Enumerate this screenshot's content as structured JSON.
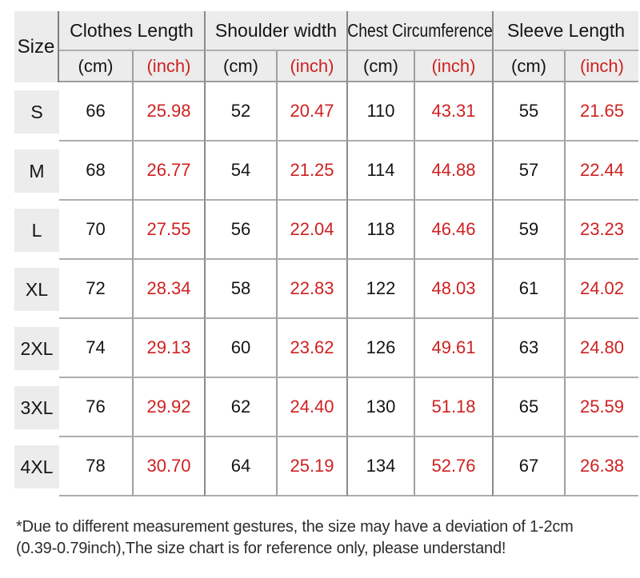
{
  "table": {
    "size_label": "Size",
    "unit_cm": "(cm)",
    "unit_inch": "(inch)",
    "groups": [
      {
        "label": "Clothes Length"
      },
      {
        "label": "Shoulder width"
      },
      {
        "label": "Chest Circumference"
      },
      {
        "label": "Sleeve Length"
      }
    ],
    "rows": [
      {
        "size": "S",
        "values": [
          "66",
          "25.98",
          "52",
          "20.47",
          "110",
          "43.31",
          "55",
          "21.65"
        ]
      },
      {
        "size": "M",
        "values": [
          "68",
          "26.77",
          "54",
          "21.25",
          "114",
          "44.88",
          "57",
          "22.44"
        ]
      },
      {
        "size": "L",
        "values": [
          "70",
          "27.55",
          "56",
          "22.04",
          "118",
          "46.46",
          "59",
          "23.23"
        ]
      },
      {
        "size": "XL",
        "values": [
          "72",
          "28.34",
          "58",
          "22.83",
          "122",
          "48.03",
          "61",
          "24.02"
        ]
      },
      {
        "size": "2XL",
        "values": [
          "74",
          "29.13",
          "60",
          "23.62",
          "126",
          "49.61",
          "63",
          "24.80"
        ]
      },
      {
        "size": "3XL",
        "values": [
          "76",
          "29.92",
          "62",
          "24.40",
          "130",
          "51.18",
          "65",
          "25.59"
        ]
      },
      {
        "size": "4XL",
        "values": [
          "78",
          "30.70",
          "64",
          "25.19",
          "134",
          "52.76",
          "67",
          "26.38"
        ]
      }
    ]
  },
  "footnote": {
    "line1": "*Due to different measurement gestures, the size may have a deviation of 1-2cm",
    "line2": "(0.39-0.79inch),The size chart is for reference only, please understand!"
  },
  "colors": {
    "accent_red": "#ce2121",
    "header_bg": "#ececec",
    "grid_line_dark": "#8a8a8a",
    "grid_line_light": "#9f9f9f",
    "text": "#151515"
  },
  "chart_data": {
    "type": "table",
    "title": "Garment size chart",
    "column_groups": [
      "Clothes Length",
      "Shoulder width",
      "Chest Circumference",
      "Sleeve Length"
    ],
    "columns": [
      "Size",
      "Clothes Length (cm)",
      "Clothes Length (inch)",
      "Shoulder width (cm)",
      "Shoulder width (inch)",
      "Chest Circumference (cm)",
      "Chest Circumference (inch)",
      "Sleeve Length (cm)",
      "Sleeve Length (inch)"
    ],
    "rows": [
      [
        "S",
        66,
        25.98,
        52,
        20.47,
        110,
        43.31,
        55,
        21.65
      ],
      [
        "M",
        68,
        26.77,
        54,
        21.25,
        114,
        44.88,
        57,
        22.44
      ],
      [
        "L",
        70,
        27.55,
        56,
        22.04,
        118,
        46.46,
        59,
        23.23
      ],
      [
        "XL",
        72,
        28.34,
        58,
        22.83,
        122,
        48.03,
        61,
        24.02
      ],
      [
        "2XL",
        74,
        29.13,
        60,
        23.62,
        126,
        49.61,
        63,
        24.8
      ],
      [
        "3XL",
        76,
        29.92,
        62,
        24.4,
        130,
        51.18,
        65,
        25.59
      ],
      [
        "4XL",
        78,
        30.7,
        64,
        25.19,
        134,
        52.76,
        67,
        26.38
      ]
    ],
    "notes": [
      "*Due to different measurement gestures, the size may have a deviation of 1-2cm",
      "(0.39-0.79inch),The size chart is for reference only, please understand!"
    ],
    "style": {
      "inch_columns_color": "#ce2121",
      "cm_columns_color": "#151515"
    }
  }
}
